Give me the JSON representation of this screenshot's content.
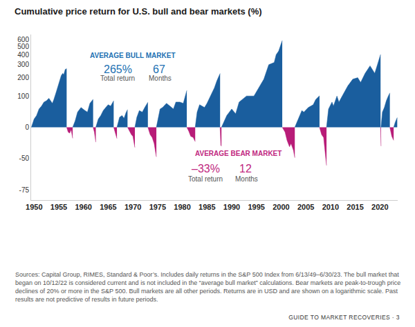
{
  "chart_data": {
    "type": "area",
    "title": "Cumulative price return for U.S. bull and bear markets (%)",
    "log": "y",
    "grid": false,
    "xlim": [
      1949.4,
      2023.6
    ],
    "xticks": [
      1950,
      1955,
      1960,
      1965,
      1970,
      1975,
      1980,
      1985,
      1990,
      1995,
      2000,
      2005,
      2010,
      2015,
      2020
    ],
    "ylim": [
      -80,
      680
    ],
    "yticks": [
      -75,
      -50,
      0,
      100,
      200,
      300,
      400,
      500,
      600
    ],
    "series": [
      {
        "color": "#1a5e9e",
        "x": [
          1949.45,
          1950.0,
          1950.5,
          1951.0,
          1951.5,
          1952.0,
          1952.5,
          1953.0,
          1953.7,
          1954.0,
          1954.5,
          1955.0,
          1955.5,
          1955.8,
          1956.0,
          1956.3,
          1956.59
        ],
        "values": [
          0,
          20,
          30,
          50,
          60,
          75,
          80,
          90,
          70,
          85,
          120,
          160,
          215,
          230,
          220,
          260,
          267
        ]
      },
      {
        "color": "#b81c78",
        "x": [
          1956.59,
          1956.9,
          1957.2,
          1957.5,
          1957.81
        ],
        "values": [
          0,
          -10,
          -12,
          -5,
          -21.6
        ]
      },
      {
        "color": "#1a5e9e",
        "x": [
          1957.81,
          1958.3,
          1958.8,
          1959.5,
          1960.3,
          1960.8,
          1961.3,
          1961.95
        ],
        "values": [
          0,
          15,
          40,
          55,
          45,
          40,
          70,
          86
        ]
      },
      {
        "color": "#b81c78",
        "x": [
          1961.95,
          1962.2,
          1962.49
        ],
        "values": [
          0,
          -10,
          -28
        ]
      },
      {
        "color": "#1a5e9e",
        "x": [
          1962.49,
          1963.0,
          1963.5,
          1964.0,
          1964.5,
          1965.0,
          1965.5,
          1966.11
        ],
        "values": [
          0,
          20,
          30,
          45,
          55,
          65,
          60,
          80
        ]
      },
      {
        "color": "#b81c78",
        "x": [
          1966.11,
          1966.4,
          1966.77
        ],
        "values": [
          0,
          -12,
          -22
        ]
      },
      {
        "color": "#1a5e9e",
        "x": [
          1966.77,
          1967.3,
          1967.8,
          1968.2,
          1968.6,
          1968.91
        ],
        "values": [
          0,
          25,
          30,
          22,
          38,
          48
        ]
      },
      {
        "color": "#b81c78",
        "x": [
          1968.91,
          1969.3,
          1969.7,
          1970.0,
          1970.4
        ],
        "values": [
          0,
          -8,
          -15,
          -18,
          -36
        ]
      },
      {
        "color": "#1a5e9e",
        "x": [
          1970.4,
          1970.8,
          1971.3,
          1971.9,
          1972.4,
          1973.03
        ],
        "values": [
          0,
          25,
          45,
          40,
          55,
          74
        ]
      },
      {
        "color": "#b81c78",
        "x": [
          1973.03,
          1973.5,
          1973.9,
          1974.3,
          1974.75
        ],
        "values": [
          0,
          -15,
          -20,
          -30,
          -48
        ]
      },
      {
        "color": "#1a5e9e",
        "x": [
          1974.75,
          1975.5,
          1976.0,
          1976.8,
          1977.5,
          1978.2,
          1978.7,
          1979.5,
          1980.2,
          1980.5,
          1980.91
        ],
        "values": [
          0,
          50,
          55,
          70,
          60,
          50,
          75,
          75,
          70,
          95,
          126
        ]
      },
      {
        "color": "#b81c78",
        "x": [
          1980.91,
          1981.3,
          1981.7,
          1982.2,
          1982.61
        ],
        "values": [
          0,
          -8,
          -18,
          -20,
          -27
        ]
      },
      {
        "color": "#1a5e9e",
        "x": [
          1982.61,
          1983.0,
          1983.5,
          1984.5,
          1985.0,
          1985.5,
          1986.0,
          1986.5,
          1987.0,
          1987.65
        ],
        "values": [
          0,
          40,
          65,
          55,
          70,
          90,
          110,
          140,
          180,
          229
        ]
      },
      {
        "color": "#b81c78",
        "x": [
          1987.65,
          1987.8,
          1987.93
        ],
        "values": [
          0,
          -33,
          -34
        ]
      },
      {
        "color": "#1a5e9e",
        "x": [
          1987.93,
          1989.0,
          1990.0,
          1990.8,
          1991.5,
          1993.0,
          1994.5,
          1995.5,
          1996.5,
          1997.5,
          1998.6,
          1999.0,
          1999.5,
          2000.23
        ],
        "values": [
          0,
          30,
          50,
          35,
          75,
          100,
          100,
          140,
          190,
          300,
          320,
          400,
          440,
          582
        ]
      },
      {
        "color": "#b81c78",
        "x": [
          2000.23,
          2000.8,
          2001.2,
          2001.7,
          2002.0,
          2002.5,
          2002.77
        ],
        "values": [
          0,
          -10,
          -25,
          -35,
          -30,
          -40,
          -49
        ]
      },
      {
        "color": "#1a5e9e",
        "x": [
          2002.77,
          2003.5,
          2004.2,
          2004.6,
          2005.5,
          2006.5,
          2007.0,
          2007.77
        ],
        "values": [
          0,
          20,
          45,
          40,
          55,
          65,
          85,
          101
        ]
      },
      {
        "color": "#b81c78",
        "x": [
          2007.77,
          2008.2,
          2008.6,
          2008.9,
          2009.19
        ],
        "values": [
          0,
          -15,
          -20,
          -45,
          -57
        ]
      },
      {
        "color": "#1a5e9e",
        "x": [
          2009.19,
          2009.6,
          2010.3,
          2010.6,
          2011.3,
          2011.7,
          2012.5,
          2013.5,
          2014.5,
          2015.5,
          2016.1,
          2017.0,
          2018.0,
          2018.95,
          2019.5,
          2020.13
        ],
        "values": [
          0,
          50,
          75,
          60,
          100,
          75,
          105,
          150,
          190,
          200,
          170,
          230,
          290,
          230,
          300,
          401
        ]
      },
      {
        "color": "#b81c78",
        "x": [
          2020.13,
          2020.22
        ],
        "values": [
          0,
          -34
        ]
      },
      {
        "color": "#1a5e9e",
        "x": [
          2020.22,
          2020.5,
          2020.9,
          2021.3,
          2021.7,
          2022.01
        ],
        "values": [
          0,
          40,
          55,
          80,
          100,
          114
        ]
      },
      {
        "color": "#b81c78",
        "x": [
          2022.01,
          2022.4,
          2022.78
        ],
        "values": [
          0,
          -18,
          -25
        ]
      },
      {
        "color": "#1a5e9e",
        "x": [
          2022.78,
          2023.1,
          2023.5
        ],
        "values": [
          0,
          12,
          24
        ]
      }
    ],
    "annotations": [
      {
        "text": "AVERAGE BULL MARKET",
        "color": "#2271b3"
      },
      {
        "text": "265%",
        "color": "#2271b3"
      },
      {
        "text": "67",
        "color": "#2271b3"
      },
      {
        "text": "Total return",
        "color": "#555555"
      },
      {
        "text": "Months",
        "color": "#555555"
      },
      {
        "text": "AVERAGE BEAR MARKET",
        "color": "#c1287f"
      },
      {
        "text": "–33%",
        "color": "#c1287f"
      },
      {
        "text": "12",
        "color": "#c1287f"
      },
      {
        "text": "Total return",
        "color": "#555555"
      },
      {
        "text": "Months",
        "color": "#555555"
      }
    ],
    "source_note": "Sources: Capital Group, RIMES, Standard & Poor’s. Includes daily returns in the S&P 500 Index from 6/13/49–6/30/23. The bull market that began on 10/12/22 is considered current and is not included in the “average bull market” calculations. Bear markets are peak-to-trough price declines of 20% or more in the S&P 500. Bull markets are all other periods. Returns are in USD and are shown on a logarithmic scale. Past results are not predictive of results in future periods.",
    "footer": "GUIDE TO MARKET RECOVERIES · 3"
  }
}
